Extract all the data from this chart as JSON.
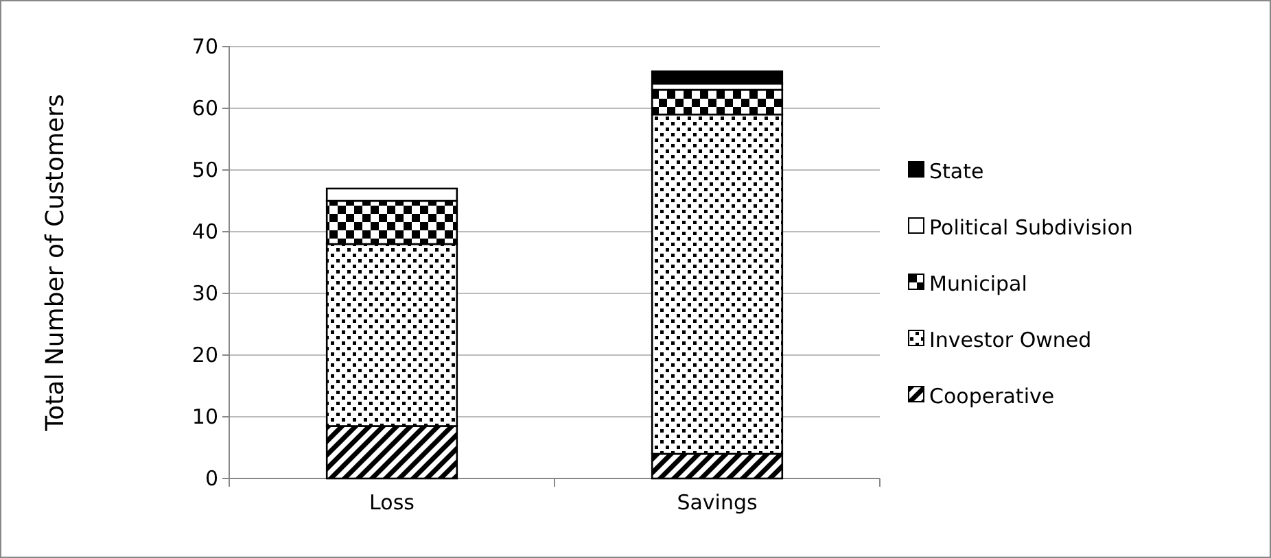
{
  "chart_data": {
    "type": "bar",
    "stacked": true,
    "categories": [
      "Loss",
      "Savings"
    ],
    "ylabel": "Total Number of Customers",
    "ylim": [
      0,
      70
    ],
    "yticks": [
      0,
      10,
      20,
      30,
      40,
      50,
      60,
      70
    ],
    "grid": "y",
    "legend": "right",
    "series": [
      {
        "name": "Cooperative",
        "color": "#000000",
        "values": [
          8.5,
          4
        ]
      },
      {
        "name": "Investor Owned",
        "color": "#000000",
        "values": [
          29.5,
          55
        ]
      },
      {
        "name": "Municipal",
        "color": "#000000",
        "values": [
          7,
          4
        ]
      },
      {
        "name": "Political Subdivision",
        "color": "#ffffff",
        "values": [
          2,
          1
        ]
      },
      {
        "name": "State",
        "color": "#000000",
        "values": [
          0,
          2
        ]
      }
    ]
  }
}
